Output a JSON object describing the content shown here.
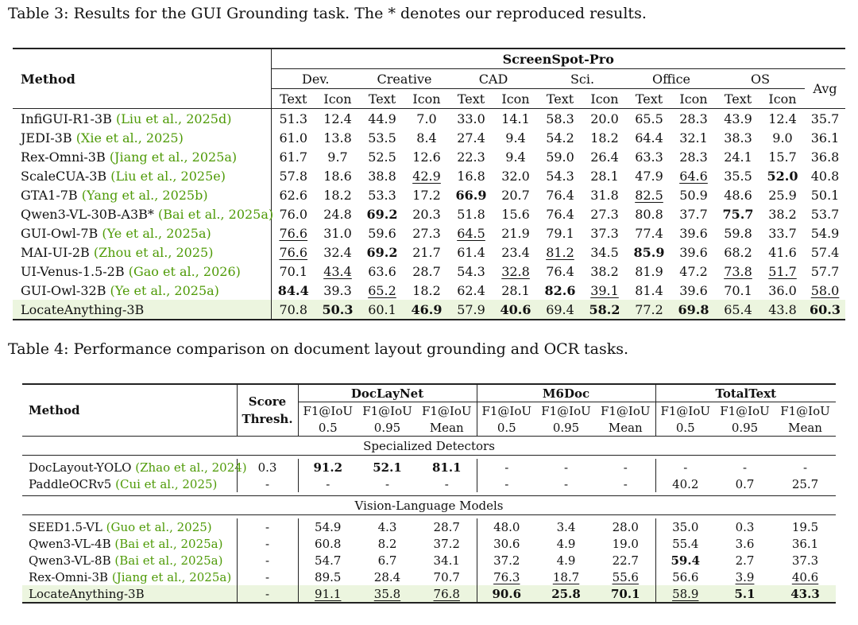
{
  "table3": {
    "caption": "Table 3: Results for the GUI Grounding task. The * denotes our reproduced results.",
    "method_header": "Method",
    "benchmark": "ScreenSpot-Pro",
    "groups": [
      "Dev.",
      "Creative",
      "CAD",
      "Sci.",
      "Office",
      "OS"
    ],
    "subcols": [
      "Text",
      "Icon"
    ],
    "avg_header": "Avg",
    "rows": [
      {
        "method": "InfiGUI-R1-3B",
        "cite": "(Liu et al., 2025d)",
        "values": [
          "51.3",
          "12.4",
          "44.9",
          "7.0",
          "33.0",
          "14.1",
          "58.3",
          "20.0",
          "65.5",
          "28.3",
          "43.9",
          "12.4",
          "35.7"
        ],
        "bold": [],
        "underline": []
      },
      {
        "method": "JEDI-3B",
        "cite": "(Xie et al., 2025)",
        "values": [
          "61.0",
          "13.8",
          "53.5",
          "8.4",
          "27.4",
          "9.4",
          "54.2",
          "18.2",
          "64.4",
          "32.1",
          "38.3",
          "9.0",
          "36.1"
        ],
        "bold": [],
        "underline": []
      },
      {
        "method": "Rex-Omni-3B",
        "cite": "(Jiang et al., 2025a)",
        "values": [
          "61.7",
          "9.7",
          "52.5",
          "12.6",
          "22.3",
          "9.4",
          "59.0",
          "26.4",
          "63.3",
          "28.3",
          "24.1",
          "15.7",
          "36.8"
        ],
        "bold": [],
        "underline": []
      },
      {
        "method": "ScaleCUA-3B",
        "cite": "(Liu et al., 2025e)",
        "values": [
          "57.8",
          "18.6",
          "38.8",
          "42.9",
          "16.8",
          "32.0",
          "54.3",
          "28.1",
          "47.9",
          "64.6",
          "35.5",
          "52.0",
          "40.8"
        ],
        "bold": [
          11
        ],
        "underline": [
          3,
          9
        ]
      },
      {
        "method": "GTA1-7B",
        "cite": "(Yang et al., 2025b)",
        "values": [
          "62.6",
          "18.2",
          "53.3",
          "17.2",
          "66.9",
          "20.7",
          "76.4",
          "31.8",
          "82.5",
          "50.9",
          "48.6",
          "25.9",
          "50.1"
        ],
        "bold": [
          4
        ],
        "underline": [
          8
        ]
      },
      {
        "method": "Qwen3-VL-30B-A3B*",
        "cite": "(Bai et al., 2025a)",
        "values": [
          "76.0",
          "24.8",
          "69.2",
          "20.3",
          "51.8",
          "15.6",
          "76.4",
          "27.3",
          "80.8",
          "37.7",
          "75.7",
          "38.2",
          "53.7"
        ],
        "bold": [
          2,
          10
        ],
        "underline": []
      },
      {
        "method": "GUI-Owl-7B",
        "cite": "(Ye et al., 2025a)",
        "values": [
          "76.6",
          "31.0",
          "59.6",
          "27.3",
          "64.5",
          "21.9",
          "79.1",
          "37.3",
          "77.4",
          "39.6",
          "59.8",
          "33.7",
          "54.9"
        ],
        "bold": [],
        "underline": [
          0,
          4
        ]
      },
      {
        "method": "MAI-UI-2B",
        "cite": "(Zhou et al., 2025)",
        "values": [
          "76.6",
          "32.4",
          "69.2",
          "21.7",
          "61.4",
          "23.4",
          "81.2",
          "34.5",
          "85.9",
          "39.6",
          "68.2",
          "41.6",
          "57.4"
        ],
        "bold": [
          2,
          8
        ],
        "underline": [
          0,
          6
        ]
      },
      {
        "method": "UI-Venus-1.5-2B",
        "cite": "(Gao et al., 2026)",
        "values": [
          "70.1",
          "43.4",
          "63.6",
          "28.7",
          "54.3",
          "32.8",
          "76.4",
          "38.2",
          "81.9",
          "47.2",
          "73.8",
          "51.7",
          "57.7"
        ],
        "bold": [],
        "underline": [
          1,
          5,
          10,
          11
        ]
      },
      {
        "method": "GUI-Owl-32B",
        "cite": "(Ye et al., 2025a)",
        "values": [
          "84.4",
          "39.3",
          "65.2",
          "18.2",
          "62.4",
          "28.1",
          "82.6",
          "39.1",
          "81.4",
          "39.6",
          "70.1",
          "36.0",
          "58.0"
        ],
        "bold": [
          0,
          6
        ],
        "underline": [
          2,
          7,
          12
        ]
      },
      {
        "method": "LocateAnything-3B",
        "cite": "",
        "values": [
          "70.8",
          "50.3",
          "60.1",
          "46.9",
          "57.9",
          "40.6",
          "69.4",
          "58.2",
          "77.2",
          "69.8",
          "65.4",
          "43.8",
          "60.3"
        ],
        "bold": [
          1,
          3,
          5,
          7,
          9,
          12
        ],
        "underline": [],
        "highlight": true
      }
    ]
  },
  "table4": {
    "caption": "Table 4: Performance comparison on document layout grounding and OCR tasks.",
    "method_header": "Method",
    "score_header_1": "Score",
    "score_header_2": "Thresh.",
    "datasets": [
      "DocLayNet",
      "M6Doc",
      "TotalText"
    ],
    "metric_top": [
      "F1@IoU",
      "F1@IoU",
      "F1@IoU"
    ],
    "metric_bottom": [
      "0.5",
      "0.95",
      "Mean"
    ],
    "sections": [
      {
        "title": "Specialized Detectors",
        "rows": [
          {
            "method": "DocLayout-YOLO",
            "cite": "(Zhao et al., 2024)",
            "thresh": "0.3",
            "values": [
              "91.2",
              "52.1",
              "81.1",
              "-",
              "-",
              "-",
              "-",
              "-",
              "-"
            ],
            "bold": [
              0,
              1,
              2
            ],
            "underline": []
          },
          {
            "method": "PaddleOCRv5",
            "cite": "(Cui et al., 2025)",
            "thresh": "-",
            "values": [
              "-",
              "-",
              "-",
              "-",
              "-",
              "-",
              "40.2",
              "0.7",
              "25.7"
            ],
            "bold": [],
            "underline": []
          }
        ]
      },
      {
        "title": "Vision-Language Models",
        "rows": [
          {
            "method": "SEED1.5-VL",
            "cite": "(Guo et al., 2025)",
            "thresh": "-",
            "values": [
              "54.9",
              "4.3",
              "28.7",
              "48.0",
              "3.4",
              "28.0",
              "35.0",
              "0.3",
              "19.5"
            ],
            "bold": [],
            "underline": []
          },
          {
            "method": "Qwen3-VL-4B",
            "cite": "(Bai et al., 2025a)",
            "thresh": "-",
            "values": [
              "60.8",
              "8.2",
              "37.2",
              "30.6",
              "4.9",
              "19.0",
              "55.4",
              "3.6",
              "36.1"
            ],
            "bold": [],
            "underline": []
          },
          {
            "method": "Qwen3-VL-8B",
            "cite": "(Bai et al., 2025a)",
            "thresh": "-",
            "values": [
              "54.7",
              "6.7",
              "34.1",
              "37.2",
              "4.9",
              "22.7",
              "59.4",
              "2.7",
              "37.3"
            ],
            "bold": [
              6
            ],
            "underline": []
          },
          {
            "method": "Rex-Omni-3B",
            "cite": "(Jiang et al., 2025a)",
            "thresh": "-",
            "values": [
              "89.5",
              "28.4",
              "70.7",
              "76.3",
              "18.7",
              "55.6",
              "56.6",
              "3.9",
              "40.6"
            ],
            "bold": [],
            "underline": [
              3,
              4,
              5,
              7,
              8
            ]
          },
          {
            "method": "LocateAnything-3B",
            "cite": "",
            "thresh": "-",
            "values": [
              "91.1",
              "35.8",
              "76.8",
              "90.6",
              "25.8",
              "70.1",
              "58.9",
              "5.1",
              "43.3"
            ],
            "bold": [
              3,
              4,
              5,
              7,
              8
            ],
            "underline": [
              0,
              1,
              2,
              6
            ],
            "highlight": true
          }
        ]
      }
    ]
  }
}
